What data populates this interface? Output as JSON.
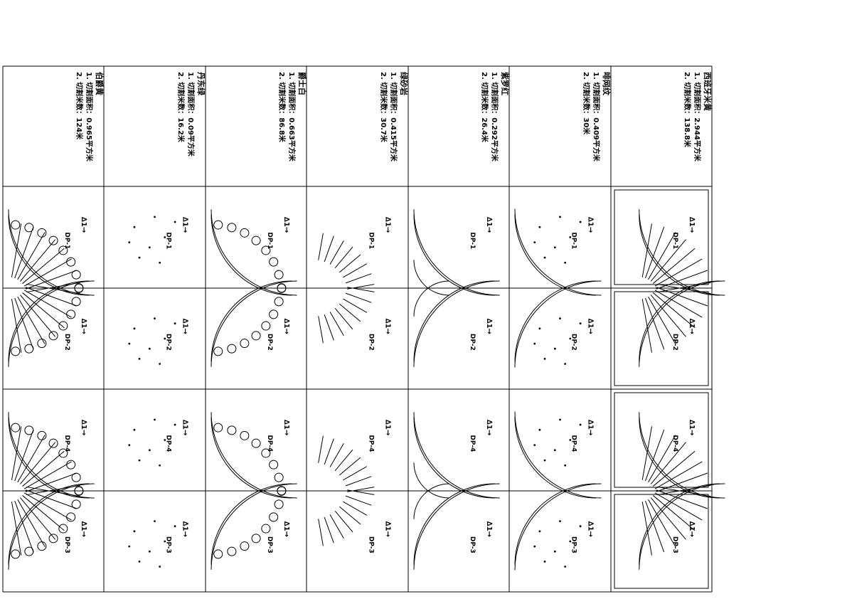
{
  "columns": [
    {
      "name": "西班牙米黄",
      "line1": "1. 切割面积：2.944平方米",
      "line2": "2. 切割米数：138.8米",
      "labels": [
        "DP-1",
        "DP-2",
        "DP-4",
        "DP-3"
      ],
      "style": "ornate"
    },
    {
      "name": "啡网纹",
      "line1": "1. 切割面积：0.409平方米",
      "line2": "2. 切割米数：30米",
      "labels": [
        "DP-1",
        "DP-2",
        "DP-4",
        "DP-3"
      ],
      "style": "arc"
    },
    {
      "name": "紫罗红",
      "line1": "1. 切割面积：0.292平方米",
      "line2": "2. 切割米数：26.4米",
      "labels": [
        "DP-1",
        "DP-2",
        "DP-4",
        "DP-3"
      ],
      "style": "narrow"
    },
    {
      "name": "绿砂岩",
      "line1": "1. 切割面积：0.415平方米",
      "line2": "2. 切割米数：30.7米",
      "labels": [
        "DP-1",
        "DP-2",
        "DP-4",
        "DP-3"
      ],
      "style": "rays"
    },
    {
      "name": "爵士白",
      "line1": "1. 切割面积：0.663平方米",
      "line2": "2. 切割米数：86.8米",
      "labels": [
        "DP-1",
        "DP-2",
        "DP-4",
        "DP-3"
      ],
      "style": "beads"
    },
    {
      "name": "丹东绿",
      "line1": "1. 切割面积：0.09平方米",
      "line2": "2. 切割米数：16.2米",
      "labels": [
        "DP-1",
        "DP-2",
        "DP-4",
        "DP-3"
      ],
      "style": "dots"
    },
    {
      "name": "伯爵黄",
      "line1": "1. 切割面积：0.965平方米",
      "line2": "2. 切割米数：124米",
      "labels": [
        "DP-1",
        "DP-2",
        "DP-4",
        "DP-3"
      ],
      "style": "fans"
    }
  ],
  "direction_label": "∆1→"
}
